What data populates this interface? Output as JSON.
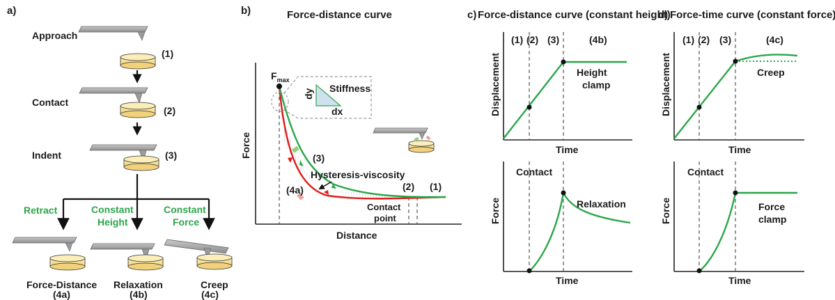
{
  "panel_a": {
    "label": "a)",
    "approach": "Approach",
    "contact": "Contact",
    "indent": "Indent",
    "step1": "(1)",
    "step2": "(2)",
    "step3": "(3)",
    "retract": "Retract",
    "constant_height_l1": "Constant",
    "constant_height_l2": "Height",
    "constant_force_l1": "Constant",
    "constant_force_l2": "Force",
    "result_a": "Force-Distance",
    "result_a_code": "(4a)",
    "result_b": "Relaxation",
    "result_b_code": "(4b)",
    "result_c": "Creep",
    "result_c_code": "(4c)"
  },
  "panel_b": {
    "label": "b)",
    "title": "Force-distance curve",
    "ylabel": "Force",
    "xlabel": "Distance",
    "fmax": "F",
    "fmax_sub": "max",
    "stiffness": "Stiffness",
    "dy": "dy",
    "dx": "dx",
    "step3": "(3)",
    "hysteresis": "Hysteresis-viscosity",
    "step4a": "(4a)",
    "step2": "(2)",
    "step1": "(1)",
    "contact_point_l1": "Contact",
    "contact_point_l2": "point"
  },
  "panel_c": {
    "label": "c)",
    "title": "Force-distance curve (constant height)",
    "steps": [
      "(1)",
      "(2)",
      "(3)",
      "(4b)"
    ],
    "top_ylabel": "Displacement",
    "top_xlabel": "Time",
    "height_clamp_l1": "Height",
    "height_clamp_l2": "clamp",
    "bottom_ylabel": "Force",
    "bottom_xlabel": "Time",
    "contact": "Contact",
    "relaxation": "Relaxation"
  },
  "panel_d": {
    "label": "d)",
    "title": "Force-time curve (constant force)",
    "steps": [
      "(1)",
      "(2)",
      "(3)",
      "(4c)"
    ],
    "top_ylabel": "Displacement",
    "top_xlabel": "Time",
    "creep": "Creep",
    "bottom_ylabel": "Force",
    "bottom_xlabel": "Time",
    "contact": "Contact",
    "force_clamp_l1": "Force",
    "force_clamp_l2": "clamp"
  },
  "colors": {
    "approach_curve": "#2aa64a",
    "retract_curve": "#e01b1b",
    "sample": "#f6df95",
    "cantilever": "#a9a9a9"
  }
}
